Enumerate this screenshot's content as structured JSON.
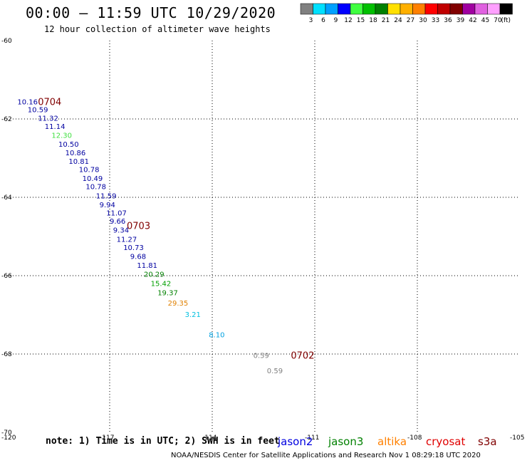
{
  "header": {
    "title": "00:00 – 11:59 UTC 10/29/2020",
    "subtitle": "12 hour collection of altimeter wave heights"
  },
  "colorbar": {
    "unit_label": "(ft)",
    "bins": [
      {
        "label": "3",
        "color": "#808080"
      },
      {
        "label": "6",
        "color": "#00e0ff"
      },
      {
        "label": "9",
        "color": "#00a0ff"
      },
      {
        "label": "12",
        "color": "#0000ff"
      },
      {
        "label": "15",
        "color": "#40ff40"
      },
      {
        "label": "18",
        "color": "#00c000"
      },
      {
        "label": "21",
        "color": "#008000"
      },
      {
        "label": "24",
        "color": "#ffe000"
      },
      {
        "label": "27",
        "color": "#ffb000"
      },
      {
        "label": "30",
        "color": "#ff8000"
      },
      {
        "label": "33",
        "color": "#ff0000"
      },
      {
        "label": "36",
        "color": "#c00000"
      },
      {
        "label": "39",
        "color": "#800000"
      },
      {
        "label": "42",
        "color": "#a000a0"
      },
      {
        "label": "45",
        "color": "#e060e0"
      },
      {
        "label": "70",
        "color": "#ffa0ff"
      },
      {
        "label": "",
        "color": "#000000"
      }
    ]
  },
  "chart_data": {
    "type": "scatter",
    "x_ticks": [
      "-120",
      "-117",
      "-114",
      "-111",
      "-108",
      "-105"
    ],
    "y_ticks": [
      "-60",
      "-62",
      "-64",
      "-66",
      "-68",
      "-70"
    ],
    "xlim": [
      -120,
      -105
    ],
    "ylim": [
      -70,
      -60
    ],
    "grid": true,
    "points": [
      {
        "lon": -119.7,
        "lat": -61.55,
        "value": "10.16",
        "color": "#0000a0"
      },
      {
        "lon": -119.4,
        "lat": -61.75,
        "value": "10.59",
        "color": "#0000a0"
      },
      {
        "lon": -119.1,
        "lat": -61.97,
        "value": "11.32",
        "color": "#0000a0"
      },
      {
        "lon": -118.9,
        "lat": -62.18,
        "value": "11.14",
        "color": "#0000a0"
      },
      {
        "lon": -118.7,
        "lat": -62.41,
        "value": "12.30",
        "color": "#40e040"
      },
      {
        "lon": -118.5,
        "lat": -62.64,
        "value": "10.50",
        "color": "#0000a0"
      },
      {
        "lon": -118.3,
        "lat": -62.85,
        "value": "10.86",
        "color": "#0000a0"
      },
      {
        "lon": -118.2,
        "lat": -63.07,
        "value": "10.81",
        "color": "#0000a0"
      },
      {
        "lon": -117.9,
        "lat": -63.28,
        "value": "10.78",
        "color": "#0000a0"
      },
      {
        "lon": -117.8,
        "lat": -63.51,
        "value": "10.49",
        "color": "#0000a0"
      },
      {
        "lon": -117.7,
        "lat": -63.72,
        "value": "10.78",
        "color": "#0000a0"
      },
      {
        "lon": -117.4,
        "lat": -63.95,
        "value": "11.59",
        "color": "#0000a0"
      },
      {
        "lon": -117.3,
        "lat": -64.18,
        "value": "9.94",
        "color": "#0000a0"
      },
      {
        "lon": -117.1,
        "lat": -64.39,
        "value": "11.07",
        "color": "#0000a0"
      },
      {
        "lon": -117.0,
        "lat": -64.6,
        "value": "9.66",
        "color": "#0000a0"
      },
      {
        "lon": -116.9,
        "lat": -64.83,
        "value": "9.34",
        "color": "#0000a0"
      },
      {
        "lon": -116.8,
        "lat": -65.06,
        "value": "11.27",
        "color": "#0000a0"
      },
      {
        "lon": -116.6,
        "lat": -65.27,
        "value": "10.73",
        "color": "#0000a0"
      },
      {
        "lon": -116.4,
        "lat": -65.5,
        "value": "9.68",
        "color": "#0000a0"
      },
      {
        "lon": -116.2,
        "lat": -65.73,
        "value": "11.81",
        "color": "#0000a0"
      },
      {
        "lon": -116.0,
        "lat": -65.95,
        "value": "20.29",
        "color": "#008000"
      },
      {
        "lon": -115.8,
        "lat": -66.19,
        "value": "15.42",
        "color": "#00a000"
      },
      {
        "lon": -115.6,
        "lat": -66.43,
        "value": "19.37",
        "color": "#008000"
      },
      {
        "lon": -115.3,
        "lat": -66.69,
        "value": "29.35",
        "color": "#e08000"
      },
      {
        "lon": -114.8,
        "lat": -66.98,
        "value": "3.21",
        "color": "#00c0e0"
      },
      {
        "lon": -114.1,
        "lat": -67.5,
        "value": "8.10",
        "color": "#00a0e0"
      },
      {
        "lon": -112.8,
        "lat": -68.03,
        "value": "0.59",
        "color": "#808080"
      },
      {
        "lon": -112.4,
        "lat": -68.42,
        "value": "0.59",
        "color": "#808080"
      }
    ],
    "pass_labels": [
      {
        "lon": -119.1,
        "lat": -61.55,
        "text": "0704",
        "color": "#800000"
      },
      {
        "lon": -116.5,
        "lat": -64.72,
        "text": "0703",
        "color": "#800000"
      },
      {
        "lon": -111.7,
        "lat": -68.03,
        "text": "0702",
        "color": "#800000"
      }
    ]
  },
  "legend": {
    "note": "note: 1) Time is in UTC; 2) SWH is in feet",
    "satellites": [
      {
        "name": "jason2",
        "color": "#0000e0"
      },
      {
        "name": "jason3",
        "color": "#008000"
      },
      {
        "name": "altika",
        "color": "#ff8000"
      },
      {
        "name": "cryosat",
        "color": "#e00000"
      },
      {
        "name": "s3a",
        "color": "#800000"
      }
    ]
  },
  "footer": {
    "credit": "NOAA/NESDIS Center for Satellite Applications and Research   Nov  1 08:29:18 UTC 2020"
  }
}
